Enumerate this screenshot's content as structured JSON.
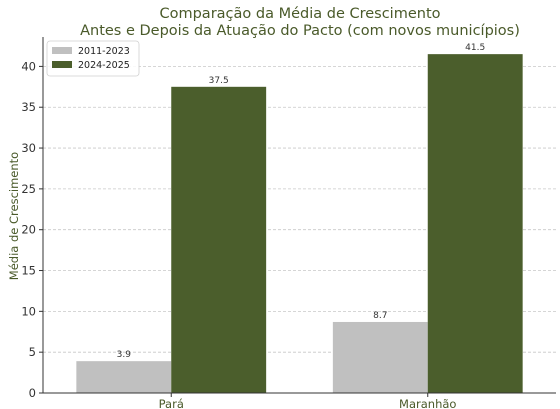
{
  "chart_data": {
    "type": "bar",
    "title_line1": "Comparação da Média de Crescimento",
    "title_line2": "Antes e Depois da Atuação do Pacto (com novos municípios)",
    "xlabel": "",
    "ylabel": "Média de Crescimento",
    "categories": [
      "Pará",
      "Maranhão"
    ],
    "series": [
      {
        "name": "2011-2023",
        "values": [
          3.9,
          8.7
        ],
        "color": "#c0c0c0"
      },
      {
        "name": "2024-2025",
        "values": [
          37.5,
          41.5
        ],
        "color": "#4b5e2c"
      }
    ],
    "data_labels": [
      [
        "3.9",
        "8.7"
      ],
      [
        "37.5",
        "41.5"
      ]
    ],
    "ylim": [
      0,
      43.6
    ],
    "yticks": [
      0,
      5,
      10,
      15,
      20,
      25,
      30,
      35,
      40
    ],
    "grid": true,
    "legend_position": "top-left",
    "colors": {
      "title": "#4a5a2a",
      "axis_label": "#4a5a2a"
    }
  }
}
